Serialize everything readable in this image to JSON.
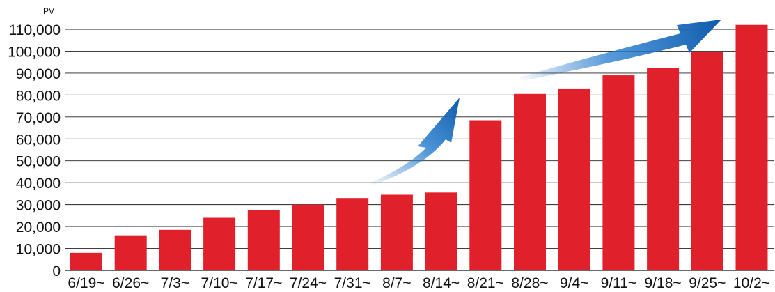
{
  "chart_data": {
    "type": "bar",
    "title": "",
    "xlabel": "",
    "ylabel": "",
    "unit_label": "PV",
    "categories": [
      "6/19~",
      "6/26~",
      "7/3~",
      "7/10~",
      "7/17~",
      "7/24~",
      "7/31~",
      "8/7~",
      "8/14~",
      "8/21~",
      "8/28~",
      "9/4~",
      "9/11~",
      "9/18~",
      "9/25~",
      "10/2~"
    ],
    "values": [
      8000,
      16000,
      18500,
      24000,
      27500,
      30000,
      33000,
      34500,
      35500,
      68500,
      80500,
      83000,
      89000,
      92500,
      99500,
      112000
    ],
    "ylim": [
      0,
      110000
    ],
    "yticks": [
      0,
      10000,
      20000,
      30000,
      40000,
      50000,
      60000,
      70000,
      80000,
      90000,
      100000,
      110000
    ],
    "ytick_labels": [
      "0",
      "10,000",
      "20,000",
      "30,000",
      "40,000",
      "50,000",
      "60,000",
      "70,000",
      "80,000",
      "90,000",
      "100,000",
      "110,000"
    ],
    "grid": true,
    "bar_color": "#e0202a",
    "arrow_color": "#1f6fc0",
    "annotations": [
      "growth-arrow",
      "growth-arrow"
    ]
  }
}
